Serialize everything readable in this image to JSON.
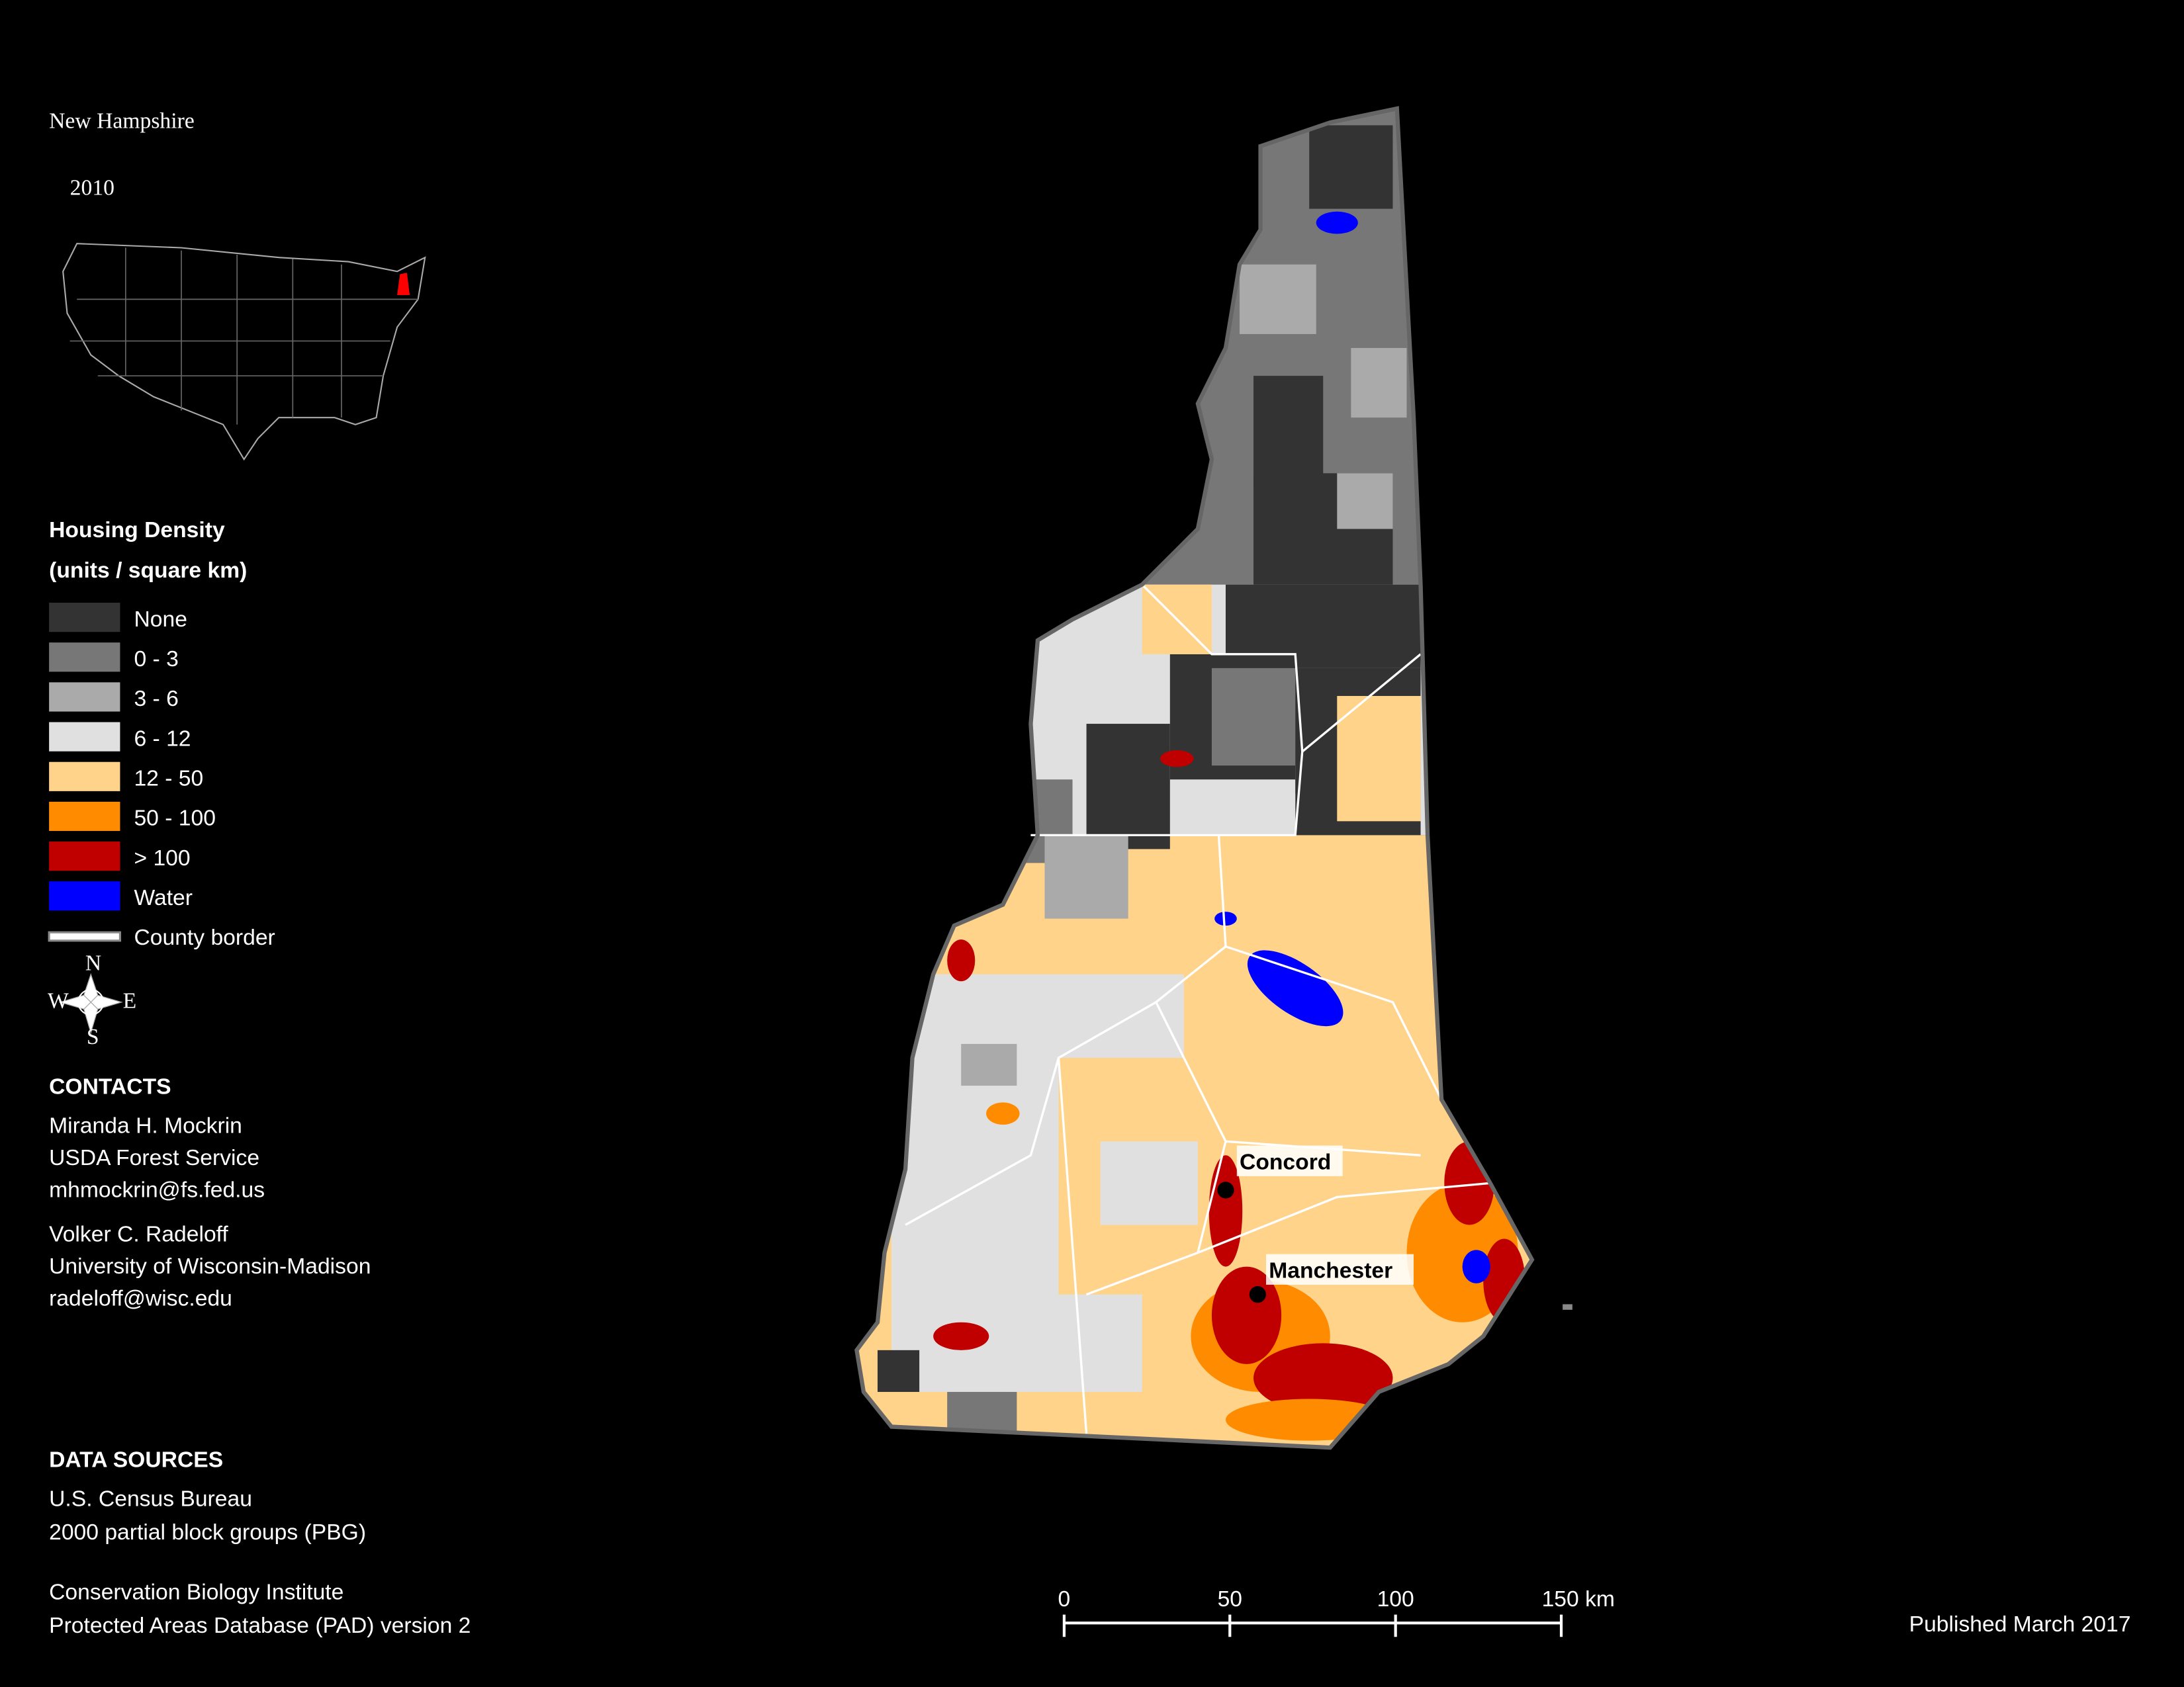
{
  "header": {
    "title": "New Hampshire",
    "subtitle": "2010"
  },
  "legend": {
    "title": "Housing Density",
    "subtitle": "(units / square km)",
    "items": [
      {
        "label": "None",
        "color": "#333333"
      },
      {
        "label": "0 - 3",
        "color": "#777777"
      },
      {
        "label": "3 - 6",
        "color": "#aaaaaa"
      },
      {
        "label": "6 - 12",
        "color": "#e0e0e0"
      },
      {
        "label": "12 - 50",
        "color": "#ffd38a"
      },
      {
        "label": "50 - 100",
        "color": "#ff8c00"
      },
      {
        "label": "> 100",
        "color": "#c00000"
      },
      {
        "label": "Water",
        "color": "#0000ff"
      },
      {
        "label": "County border",
        "color": "#ffffff"
      }
    ]
  },
  "compass": {
    "n": "N",
    "s": "S",
    "e": "E",
    "w": "W"
  },
  "contacts": {
    "heading": "CONTACTS",
    "people": [
      [
        "Miranda H. Mockrin",
        "USDA Forest Service",
        "mhmockrin@fs.fed.us"
      ],
      [
        "Volker C. Radeloff",
        "University of Wisconsin-Madison",
        "radeloff@wisc.edu"
      ]
    ]
  },
  "data_sources": {
    "heading": "DATA SOURCES",
    "groups": [
      [
        "U.S. Census Bureau",
        "2000 partial block groups (PBG)"
      ],
      [
        "Conservation Biology Institute",
        "Protected Areas Database (PAD) version 2"
      ]
    ]
  },
  "cities": [
    "Concord",
    "Manchester"
  ],
  "scale_bar": {
    "ticks": [
      0,
      50,
      100,
      {
        "value": 150,
        "label": "150 km"
      }
    ]
  },
  "footer": {
    "published": "Published March 2017"
  }
}
